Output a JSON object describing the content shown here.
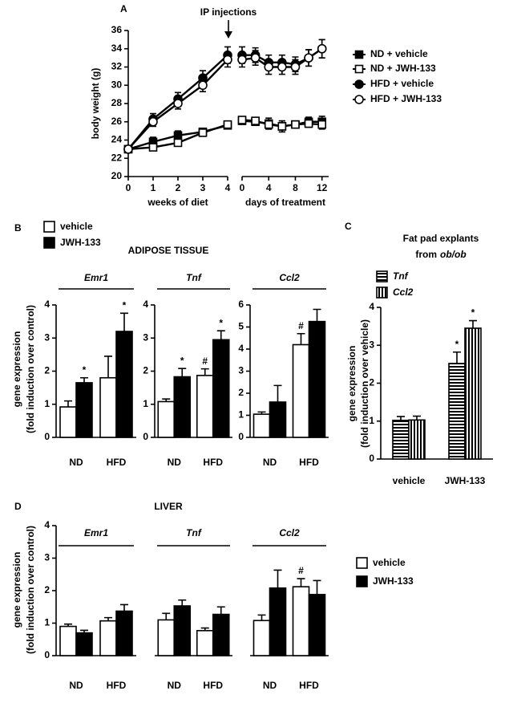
{
  "chart_data": [
    {
      "type": "line",
      "label": "A",
      "annotation": "IP injections",
      "ylabel": "body weight (g)",
      "ylim": [
        20,
        36
      ],
      "yticks": [
        20,
        22,
        24,
        26,
        28,
        30,
        32,
        34,
        36
      ],
      "segments": [
        {
          "xlabel": "weeks of diet",
          "x": [
            0,
            1,
            2,
            3,
            4
          ],
          "xlim": [
            0,
            4
          ],
          "xticks": [
            0,
            1,
            2,
            3,
            4
          ]
        },
        {
          "xlabel": "days of treatment",
          "x": [
            0,
            2,
            4,
            6,
            8,
            10,
            12
          ],
          "xlim": [
            0,
            13
          ],
          "xticks": [
            0,
            4,
            8,
            12
          ]
        }
      ],
      "series": [
        {
          "name": "ND + vehicle",
          "marker": "square",
          "color": "#000000",
          "fill": "#000000",
          "segments": [
            {
              "values": [
                23,
                23.8,
                24.5,
                24.9,
                25.6
              ],
              "errors": [
                0.2,
                0.5,
                0.5,
                0.3,
                0.2
              ]
            },
            {
              "values": [
                26.1,
                26,
                25.8,
                25.5,
                25.7,
                26,
                26
              ],
              "errors": [
                0.2,
                0.3,
                0.6,
                0.6,
                0.3,
                0.5,
                0.6
              ]
            }
          ]
        },
        {
          "name": "ND + JWH-133",
          "marker": "square",
          "color": "#000000",
          "fill": "#ffffff",
          "segments": [
            {
              "values": [
                23,
                23.2,
                23.7,
                24.8,
                25.7
              ],
              "errors": [
                0.2,
                0.3,
                0.3,
                0.3,
                0.2
              ]
            },
            {
              "values": [
                26.2,
                26.1,
                25.7,
                25.5,
                25.7,
                25.8,
                25.7
              ],
              "errors": [
                0.2,
                0.3,
                0.5,
                0.6,
                0.3,
                0.4,
                0.5
              ]
            }
          ]
        },
        {
          "name": "HFD + vehicle",
          "marker": "circle",
          "color": "#000000",
          "fill": "#000000",
          "segments": [
            {
              "values": [
                23,
                26.3,
                28.5,
                30.8,
                33.3
              ],
              "errors": [
                0.2,
                0.6,
                0.7,
                0.8,
                0.9
              ]
            },
            {
              "values": [
                33.3,
                33.3,
                32.5,
                32.5,
                32.3,
                33,
                34
              ],
              "errors": [
                0.9,
                0.8,
                0.8,
                0.8,
                0.8,
                0.9,
                1
              ]
            }
          ]
        },
        {
          "name": "HFD + JWH-133",
          "marker": "circle",
          "color": "#000000",
          "fill": "#ffffff",
          "segments": [
            {
              "values": [
                23,
                26,
                28,
                30,
                32.8
              ],
              "errors": [
                0.2,
                0.5,
                0.6,
                0.7,
                0.8
              ]
            },
            {
              "values": [
                32.8,
                33,
                32,
                32,
                32,
                33,
                34
              ],
              "errors": [
                0.8,
                0.8,
                0.8,
                0.8,
                0.8,
                0.9,
                1
              ]
            }
          ]
        }
      ]
    },
    {
      "type": "bar",
      "label": "B",
      "title": "ADIPOSE TISSUE",
      "ylabel": [
        "gene expression",
        "(fold induction over control)"
      ],
      "categories": [
        "ND",
        "HFD"
      ],
      "series": [
        {
          "name": "vehicle",
          "color": "#ffffff"
        },
        {
          "name": "JWH-133",
          "color": "#000000"
        }
      ],
      "subplots": [
        {
          "title": "Emr1",
          "ylim": [
            0,
            4
          ],
          "yticks": [
            0,
            1,
            2,
            3,
            4
          ],
          "series": [
            {
              "values": [
                0.92,
                1.8
              ],
              "errors": [
                0.18,
                0.65
              ],
              "annotations": [
                null,
                null
              ]
            },
            {
              "values": [
                1.65,
                3.2
              ],
              "errors": [
                0.15,
                0.55
              ],
              "annotations": [
                "*",
                "*"
              ]
            }
          ]
        },
        {
          "title": "Tnf",
          "ylim": [
            0,
            4
          ],
          "yticks": [
            0,
            1,
            2,
            3,
            4
          ],
          "series": [
            {
              "values": [
                1.08,
                1.87
              ],
              "errors": [
                0.08,
                0.2
              ],
              "annotations": [
                null,
                "#"
              ]
            },
            {
              "values": [
                1.83,
                2.95
              ],
              "errors": [
                0.25,
                0.27
              ],
              "annotations": [
                "*",
                "*"
              ]
            }
          ]
        },
        {
          "title": "Ccl2",
          "ylim": [
            0,
            6
          ],
          "yticks": [
            0,
            1,
            2,
            3,
            4,
            5,
            6
          ],
          "series": [
            {
              "values": [
                1.05,
                4.2
              ],
              "errors": [
                0.1,
                0.5
              ],
              "annotations": [
                null,
                "#"
              ]
            },
            {
              "values": [
                1.6,
                5.25
              ],
              "errors": [
                0.75,
                0.55
              ],
              "annotations": [
                null,
                null
              ]
            }
          ]
        }
      ]
    },
    {
      "type": "bar",
      "label": "C",
      "title": "Fat pad explants",
      "subtitle": [
        "from",
        "ob/ob"
      ],
      "ylabel": [
        "gene expression",
        "(fold induction over vehicle)"
      ],
      "categories": [
        "vehicle",
        "JWH-133"
      ],
      "series": [
        {
          "name": "Tnf",
          "color": "#000000",
          "pattern": "horizontal"
        },
        {
          "name": "Ccl2",
          "color": "#000000",
          "pattern": "vertical"
        }
      ],
      "subplots": [
        {
          "ylim": [
            0,
            4
          ],
          "yticks": [
            0,
            1,
            2,
            3,
            4
          ],
          "series": [
            {
              "values": [
                1.02,
                2.52
              ],
              "errors": [
                0.1,
                0.3
              ],
              "annotations": [
                null,
                "*"
              ]
            },
            {
              "values": [
                1.03,
                3.45
              ],
              "errors": [
                0.1,
                0.2
              ],
              "annotations": [
                null,
                "*"
              ]
            }
          ]
        }
      ]
    },
    {
      "type": "bar",
      "label": "D",
      "title": "LIVER",
      "ylabel": [
        "gene expression",
        "(fold induction over control)"
      ],
      "categories": [
        "ND",
        "HFD"
      ],
      "ylim": [
        0,
        4
      ],
      "yticks": [
        0,
        1,
        2,
        3,
        4
      ],
      "series": [
        {
          "name": "vehicle",
          "color": "#ffffff"
        },
        {
          "name": "JWH-133",
          "color": "#000000"
        }
      ],
      "subplots": [
        {
          "title": "Emr1",
          "series": [
            {
              "values": [
                0.9,
                1.07
              ],
              "errors": [
                0.07,
                0.1
              ],
              "annotations": [
                null,
                null
              ]
            },
            {
              "values": [
                0.7,
                1.37
              ],
              "errors": [
                0.08,
                0.2
              ],
              "annotations": [
                null,
                null
              ]
            }
          ]
        },
        {
          "title": "Tnf",
          "series": [
            {
              "values": [
                1.1,
                0.77
              ],
              "errors": [
                0.2,
                0.08
              ],
              "annotations": [
                null,
                null
              ]
            },
            {
              "values": [
                1.53,
                1.27
              ],
              "errors": [
                0.18,
                0.23
              ],
              "annotations": [
                null,
                null
              ]
            }
          ]
        },
        {
          "title": "Ccl2",
          "series": [
            {
              "values": [
                1.08,
                2.12
              ],
              "errors": [
                0.17,
                0.25
              ],
              "annotations": [
                null,
                "#"
              ]
            },
            {
              "values": [
                2.08,
                1.88
              ],
              "errors": [
                0.55,
                0.43
              ],
              "annotations": [
                null,
                null
              ]
            }
          ]
        }
      ]
    }
  ]
}
